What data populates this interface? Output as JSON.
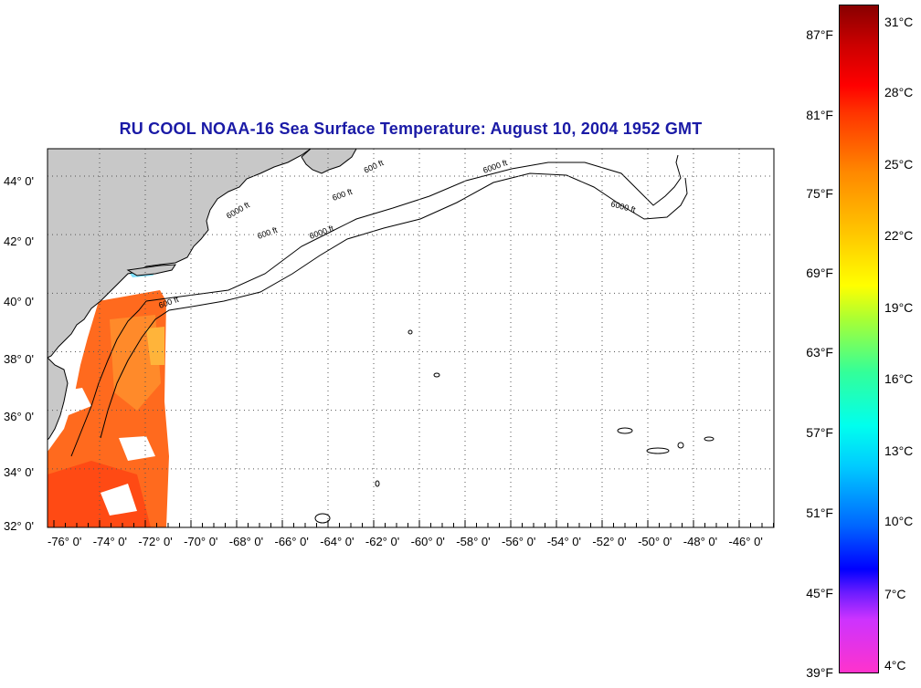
{
  "title": "RU COOL  NOAA-16  Sea Surface Temperature:  August 10, 2004 1952 GMT",
  "map": {
    "lat_labels": [
      "44° 0'",
      "42° 0'",
      "40° 0'",
      "38° 0'",
      "36° 0'",
      "34° 0'",
      "32° 0'"
    ],
    "lon_labels": [
      "-76° 0'",
      "-74° 0'",
      "-72° 0'",
      "-70° 0'",
      "-68° 0'",
      "-66° 0'",
      "-64° 0'",
      "-62° 0'",
      "-60° 0'",
      "-58° 0'",
      "-56° 0'",
      "-54° 0'",
      "-52° 0'",
      "-50° 0'",
      "-48° 0'",
      "-46° 0'"
    ],
    "contour_labels": [
      "600 ft",
      "6000 ft",
      "600 ft",
      "6000 ft",
      "600 ft",
      "6000 ft",
      "6000 ft",
      "600 ft"
    ],
    "colors": {
      "land": "#c8c8c8",
      "warm": "#ff5a1e",
      "hot": "#ff3b10",
      "cool": "#ffd040",
      "frame": "#000000"
    }
  },
  "colorbar": {
    "celsius": [
      "31°C",
      "28°C",
      "25°C",
      "22°C",
      "19°C",
      "16°C",
      "13°C",
      "10°C",
      "7°C",
      "4°C"
    ],
    "fahrenheit": [
      "87°F",
      "81°F",
      "75°F",
      "69°F",
      "63°F",
      "57°F",
      "51°F",
      "45°F",
      "39°F"
    ]
  }
}
